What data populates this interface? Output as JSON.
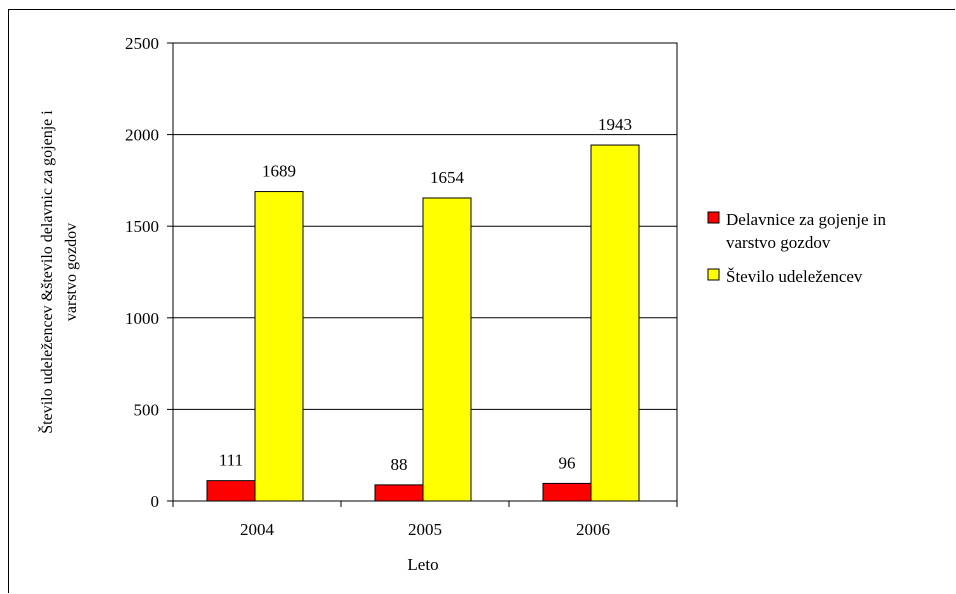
{
  "chart_data": {
    "type": "bar",
    "categories": [
      "2004",
      "2005",
      "2006"
    ],
    "series": [
      {
        "name": "Delavnice za gojenje in varstvo gozdov",
        "values": [
          111,
          88,
          96
        ],
        "color": "#ff0000"
      },
      {
        "name": "Število udeležencev",
        "values": [
          1689,
          1654,
          1943
        ],
        "color": "#ffff00"
      }
    ],
    "xlabel": "Leto",
    "ylabel_lines": [
      "Število udeležencev &število delavnic za gojenje i",
      "varstvo gozdov"
    ],
    "ylim": [
      0,
      2500
    ],
    "yticks": [
      0,
      500,
      1000,
      1500,
      2000,
      2500
    ],
    "grid": true,
    "legend_position": "right",
    "legend_lines": [
      [
        "Delavnice za gojenje in",
        "varstvo gozdov"
      ],
      [
        "Število udeležencev"
      ]
    ]
  }
}
